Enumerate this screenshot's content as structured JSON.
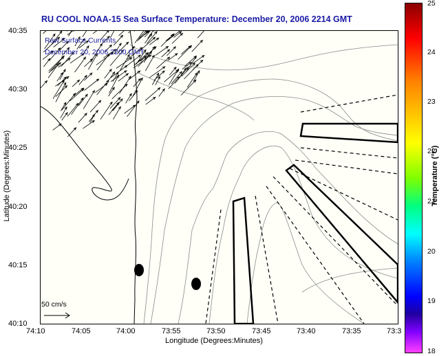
{
  "title": "RU COOL  NOAA-15  Sea Surface Temperature:  December 20, 2006 2214 GMT",
  "legend": {
    "line1": "Raw Surface Currents",
    "line2": "December 20, 2006 2200 GMT"
  },
  "axes": {
    "xlabel": "Longitude (Degrees:Minutes)",
    "ylabel": "Latitude (Degrees:Minutes)",
    "xticks": [
      "74:10",
      "74:05",
      "74:00",
      "73:55",
      "73:50",
      "73:45",
      "73:40",
      "73:35",
      "73:3"
    ],
    "yticks": [
      "40:35",
      "40:30",
      "40:25",
      "40:20",
      "40:15",
      "40:10"
    ]
  },
  "scale_vector": {
    "label": "50 cm/s"
  },
  "colorbar": {
    "label": "Temperature (°C)",
    "ticks": [
      "25",
      "24",
      "23",
      "22",
      "21",
      "20",
      "19",
      "18"
    ],
    "range": [
      18,
      25
    ]
  },
  "icons": {
    "current-vectors": "arrow-field",
    "coastline": "contour-line"
  }
}
